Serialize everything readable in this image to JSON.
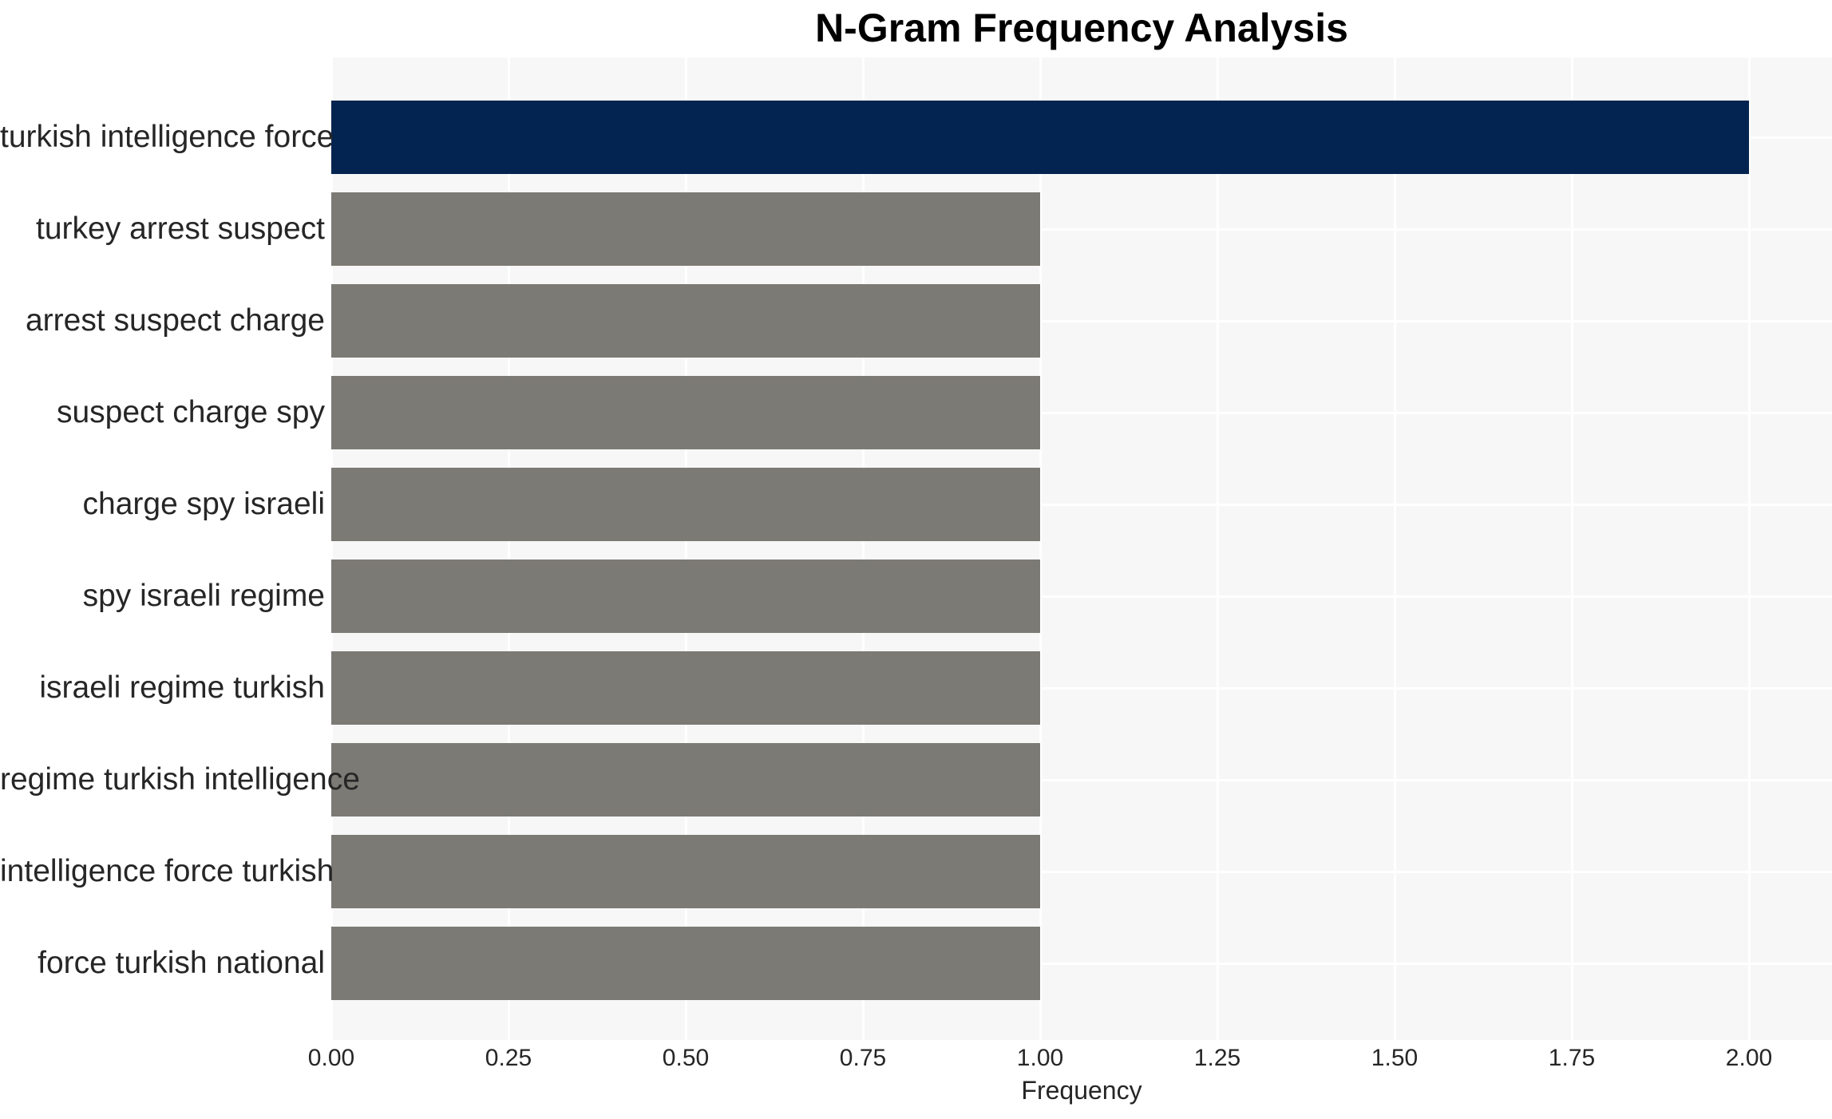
{
  "title": "N-Gram Frequency Analysis",
  "chart_data": {
    "type": "bar",
    "orientation": "horizontal",
    "title": "N-Gram Frequency Analysis",
    "xlabel": "Frequency",
    "ylabel": "",
    "categories": [
      "turkish intelligence force",
      "turkey arrest suspect",
      "arrest suspect charge",
      "suspect charge spy",
      "charge spy israeli",
      "spy israeli regime",
      "israeli regime turkish",
      "regime turkish intelligence",
      "intelligence force turkish",
      "force turkish national"
    ],
    "values": [
      2.0,
      1.0,
      1.0,
      1.0,
      1.0,
      1.0,
      1.0,
      1.0,
      1.0,
      1.0
    ],
    "bar_colors": [
      "#032350",
      "#7c7a74",
      "#7c7a74",
      "#7c7a74",
      "#7c7a74",
      "#7c7a74",
      "#7c7a74",
      "#7c7a74",
      "#7c7a74",
      "#7c7a74"
    ],
    "xlim": [
      0,
      2.117
    ],
    "xtick_values": [
      0.0,
      0.25,
      0.5,
      0.75,
      1.0,
      1.25,
      1.5,
      1.75,
      2.0
    ],
    "xtick_labels": [
      "0.00",
      "0.25",
      "0.50",
      "0.75",
      "1.00",
      "1.25",
      "1.50",
      "1.75",
      "2.00"
    ],
    "grid": "on",
    "legend": "none",
    "colors": {
      "highlight_bar": "#032350",
      "default_bar": "#7c7a74",
      "plot_background": "#f7f7f7",
      "figure_background": "#ffffff",
      "gridline": "#ffffff",
      "tick_text": "#262626",
      "title_text": "#000000"
    }
  }
}
